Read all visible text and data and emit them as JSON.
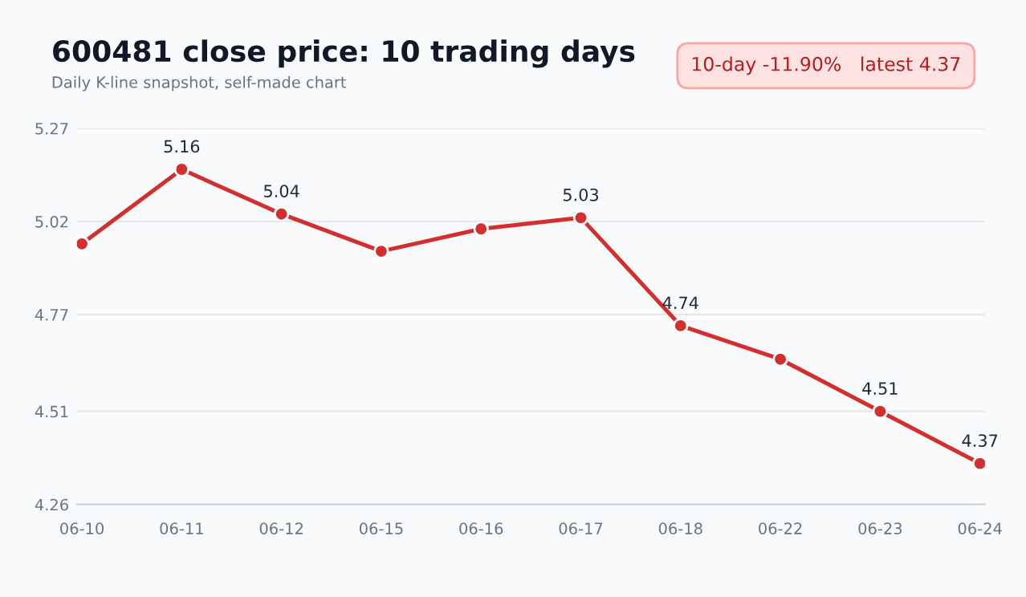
{
  "chart_data": {
    "type": "line",
    "title": "600481 close price: 10 trading days",
    "subtitle": "Daily K-line snapshot, self-made chart",
    "annotations": [
      "10-day -11.90%   latest 4.37"
    ],
    "categories": [
      "06-10",
      "06-11",
      "06-12",
      "06-15",
      "06-16",
      "06-17",
      "06-18",
      "06-22",
      "06-23",
      "06-24"
    ],
    "series": [
      {
        "color": "#d32f2f",
        "values": [
          4.96,
          5.16,
          5.04,
          4.94,
          5.0,
          5.03,
          4.74,
          4.65,
          4.51,
          4.37
        ],
        "value_labels": [
          null,
          "5.16",
          "5.04",
          null,
          null,
          "5.03",
          "4.74",
          null,
          "4.51",
          "4.37"
        ]
      }
    ],
    "ylim": [
      4.26,
      5.27
    ],
    "yticks": [
      4.26,
      4.51,
      4.77,
      5.02,
      5.27
    ],
    "grid": "y",
    "marker": "circle",
    "line_style": "solid"
  }
}
